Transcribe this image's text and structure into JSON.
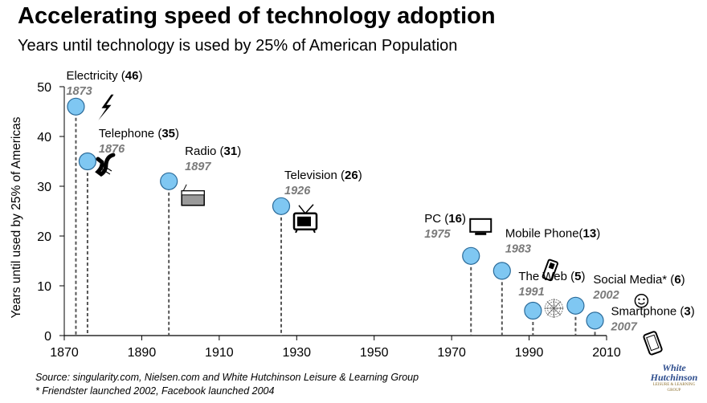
{
  "title": "Accelerating speed of technology adoption",
  "subtitle": "Years until technology is used by 25% of American Population",
  "source_line1": "Source: singularity.com, Nielsen.com and White Hutchinson Leisure & Learning Group",
  "source_line2": "* Friendster launched 2002, Facebook launched 2004",
  "logo_text": [
    "White",
    "Hutchinson"
  ],
  "logo_sub": "LEISURE & LEARNING GROUP",
  "colors": {
    "marker_fill": "#7fc7f2",
    "marker_stroke": "#2a6a99",
    "year_label": "#7a7a7a",
    "drop_line": "#555555"
  },
  "chart_data": {
    "type": "scatter",
    "title": "Accelerating speed of technology adoption",
    "subtitle": "Years until technology is used by 25% of American Population",
    "xlabel": "",
    "ylabel": "Years until used by 25% of Americas",
    "xlim": [
      1870,
      2010
    ],
    "ylim": [
      0,
      50
    ],
    "xticks": [
      "1870",
      "1890",
      "1910",
      "1930",
      "1950",
      "1970",
      "1990",
      "2010"
    ],
    "yticks": [
      "0",
      "10",
      "20",
      "30",
      "40",
      "50"
    ],
    "grid": false,
    "points": [
      {
        "name": "Electricity",
        "year": 1873,
        "year_label": "1873",
        "years": 46,
        "icon": "lightning-icon"
      },
      {
        "name": "Telephone",
        "year": 1876,
        "year_label": "1876",
        "years": 35,
        "icon": "phone-handset-icon"
      },
      {
        "name": "Radio",
        "year": 1897,
        "year_label": "1897",
        "years": 31,
        "icon": "radio-icon"
      },
      {
        "name": "Television",
        "year": 1926,
        "year_label": "1926",
        "years": 26,
        "icon": "television-icon"
      },
      {
        "name": "PC",
        "year": 1975,
        "year_label": "1975",
        "years": 16,
        "icon": "monitor-icon"
      },
      {
        "name": "Mobile Phone",
        "year": 1983,
        "year_label": "1983",
        "years": 13,
        "icon": "mobile-phone-icon"
      },
      {
        "name": "The Web",
        "year": 1991,
        "year_label": "1991",
        "years": 5,
        "icon": "spider-web-icon"
      },
      {
        "name": "Social Media*",
        "year": 2002,
        "year_label": "2002",
        "years": 6,
        "icon": "smiley-icon"
      },
      {
        "name": "Smartphone",
        "year": 2007,
        "year_label": "2007",
        "years": 3,
        "icon": "smartphone-icon"
      }
    ]
  }
}
